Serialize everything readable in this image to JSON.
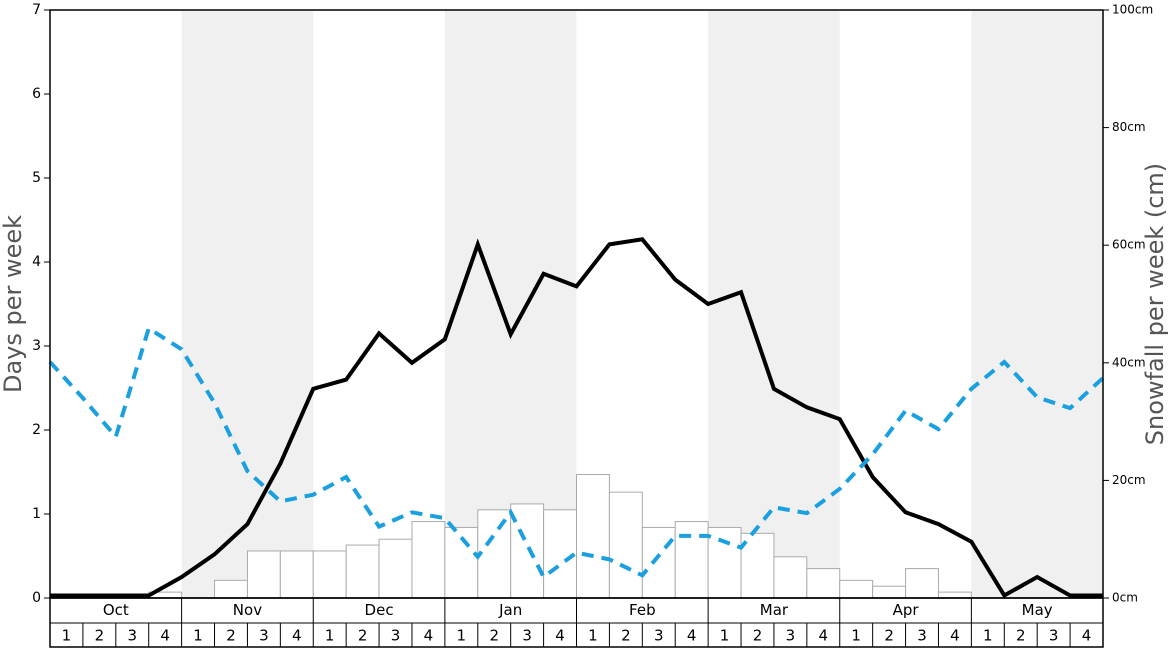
{
  "chart_data": {
    "type": "combo",
    "ylabel": "Days per week",
    "y2label": "Snowfall per week (cm)",
    "months": [
      "Oct",
      "Nov",
      "Dec",
      "Jan",
      "Feb",
      "Mar",
      "Apr",
      "May"
    ],
    "weeks": [
      1,
      2,
      3,
      4
    ],
    "ylim": [
      0,
      7
    ],
    "yticks": [
      0,
      1,
      2,
      3,
      4,
      5,
      6,
      7
    ],
    "y2lim": [
      0,
      100
    ],
    "y2ticks": [
      {
        "value": 0,
        "label": "0cm"
      },
      {
        "value": 20,
        "label": "20cm"
      },
      {
        "value": 40,
        "label": "40cm"
      },
      {
        "value": 60,
        "label": "60cm"
      },
      {
        "value": 80,
        "label": "80cm"
      },
      {
        "value": 100,
        "label": "100cm"
      }
    ],
    "band_color": "#f0f0f0",
    "series": [
      {
        "type": "bar",
        "axis": "y2",
        "color": "#ffffff",
        "values": [
          0,
          0,
          0,
          1,
          0,
          3,
          8,
          8,
          8,
          9,
          10,
          13,
          12,
          15,
          16,
          15,
          21,
          18,
          12,
          13,
          12,
          11,
          7,
          5,
          3,
          2,
          5,
          1,
          0,
          0,
          0,
          0
        ]
      },
      {
        "type": "line",
        "color": "#000000",
        "dashed": false,
        "values": [
          0.03,
          0.03,
          0.03,
          0.03,
          0.25,
          0.52,
          0.88,
          1.6,
          2.49,
          2.6,
          3.15,
          2.8,
          3.08,
          4.21,
          3.14,
          3.86,
          3.71,
          4.21,
          4.27,
          3.79,
          3.5,
          3.64,
          2.49,
          2.27,
          2.13,
          1.44,
          1.02,
          0.88,
          0.67,
          0.03,
          0.25,
          0.03,
          0.03
        ]
      },
      {
        "type": "line",
        "color": "#1a9fe0",
        "dashed": true,
        "values": [
          2.81,
          2.38,
          1.92,
          3.21,
          2.96,
          2.32,
          1.51,
          1.15,
          1.23,
          1.44,
          0.85,
          1.02,
          0.95,
          0.49,
          1.02,
          0.25,
          0.54,
          0.46,
          0.27,
          0.74,
          0.74,
          0.6,
          1.08,
          1.01,
          1.3,
          1.71,
          2.23,
          2.01,
          2.49,
          2.81,
          2.39,
          2.26,
          2.62
        ]
      }
    ]
  }
}
